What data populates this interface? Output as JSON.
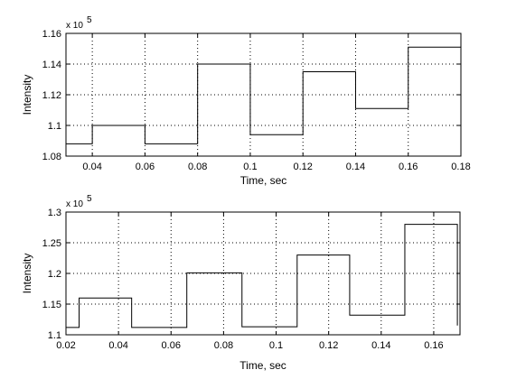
{
  "chart_data": [
    {
      "type": "line",
      "step": true,
      "xlabel": "Time,  sec",
      "ylabel": "Intensity",
      "y_multiplier": "x 10",
      "y_multiplier_exponent": "5",
      "xlim": [
        0.03,
        0.18
      ],
      "ylim": [
        1.08,
        1.16
      ],
      "x_ticks": [
        0.04,
        0.06,
        0.08,
        0.1,
        0.12,
        0.14,
        0.16,
        0.18
      ],
      "x_tick_labels": [
        "0.04",
        "0.06",
        "0.08",
        "0.1",
        "0.12",
        "0.14",
        "0.16",
        "0.18"
      ],
      "y_ticks": [
        1.08,
        1.1,
        1.12,
        1.14,
        1.16
      ],
      "y_tick_labels": [
        "1.08",
        "1.1",
        "1.12",
        "1.14",
        "1.16"
      ],
      "grid": true,
      "series": [
        {
          "x": [
            0.03,
            0.04,
            0.04,
            0.06,
            0.06,
            0.08,
            0.08,
            0.1,
            0.1,
            0.12,
            0.12,
            0.14,
            0.14,
            0.16,
            0.16,
            0.18
          ],
          "y": [
            1.088,
            1.088,
            1.1,
            1.1,
            1.088,
            1.088,
            1.14,
            1.14,
            1.094,
            1.094,
            1.135,
            1.135,
            1.111,
            1.111,
            1.151,
            1.151
          ]
        }
      ]
    },
    {
      "type": "line",
      "step": true,
      "xlabel": "Time,  sec",
      "ylabel": "Intensity",
      "y_multiplier": "x 10",
      "y_multiplier_exponent": "5",
      "xlim": [
        0.02,
        0.17
      ],
      "ylim": [
        1.1,
        1.3
      ],
      "x_ticks": [
        0.02,
        0.04,
        0.06,
        0.08,
        0.1,
        0.12,
        0.14,
        0.16
      ],
      "x_tick_labels": [
        "0.02",
        "0.04",
        "0.06",
        "0.08",
        "0.1",
        "0.12",
        "0.14",
        "0.16"
      ],
      "y_ticks": [
        1.1,
        1.15,
        1.2,
        1.25,
        1.3
      ],
      "y_tick_labels": [
        "1.1",
        "1.15",
        "1.2",
        "1.25",
        "1.3"
      ],
      "grid": true,
      "series": [
        {
          "x": [
            0.02,
            0.025,
            0.025,
            0.045,
            0.045,
            0.066,
            0.066,
            0.087,
            0.087,
            0.108,
            0.108,
            0.128,
            0.128,
            0.149,
            0.149,
            0.169,
            0.169
          ],
          "y": [
            1.112,
            1.112,
            1.16,
            1.16,
            1.112,
            1.112,
            1.201,
            1.201,
            1.113,
            1.113,
            1.23,
            1.23,
            1.132,
            1.132,
            1.28,
            1.28,
            1.115
          ]
        }
      ]
    }
  ]
}
